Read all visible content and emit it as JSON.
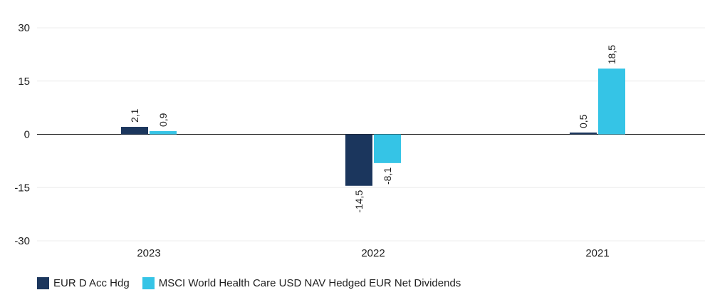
{
  "chart_data": {
    "type": "bar",
    "title": "",
    "xlabel": "",
    "ylabel": "",
    "categories": [
      "2023",
      "2022",
      "2021"
    ],
    "series": [
      {
        "name": "EUR D Acc Hdg",
        "color": "#1b365d",
        "values": [
          2.1,
          -14.5,
          0.5
        ],
        "labels": [
          "2,1",
          "-14,5",
          "0,5"
        ]
      },
      {
        "name": "MSCI World Health Care USD NAV Hedged EUR Net Dividends",
        "color": "#35c4e6",
        "values": [
          0.9,
          -8.1,
          18.5
        ],
        "labels": [
          "0,9",
          "-8,1",
          "18,5"
        ]
      }
    ],
    "ylim": [
      -30,
      30
    ],
    "yticks": [
      30,
      15,
      0,
      -15,
      -30
    ],
    "ytick_labels": [
      "30",
      "15",
      "0",
      "-15",
      "-30"
    ],
    "grid": true,
    "legend_position": "bottom-left"
  }
}
